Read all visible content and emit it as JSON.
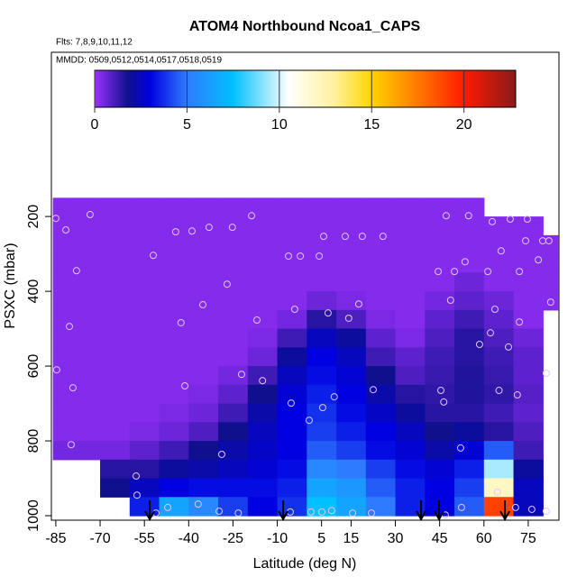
{
  "chart_data": {
    "type": "heatmap",
    "title": "ATOM4 Northbound Ncoa1_CAPS",
    "subtitle": "Flts: 7,8,9,10,11,12",
    "annotation": "MMDD: 0509,0512,0514,0517,0518,0519",
    "x_label": "Latitude (deg N)",
    "y_label": "PSXC (mbar)",
    "xlim": [
      -86.5,
      85.4
    ],
    "ylim": [
      1012,
      -239
    ],
    "xticks": [
      -85,
      -70,
      -55,
      -40,
      -25,
      -10,
      5,
      15,
      30,
      45,
      60,
      75
    ],
    "yticks": [
      200,
      400,
      600,
      800,
      1000
    ],
    "x_edges": [
      -86,
      -80,
      -70,
      -60,
      -50,
      -40,
      -30,
      -20,
      -10,
      0,
      10,
      20,
      30,
      40,
      50,
      60,
      70,
      80,
      85
    ],
    "y_edges": [
      150,
      200,
      250,
      300,
      350,
      400,
      450,
      500,
      550,
      600,
      650,
      700,
      750,
      800,
      850,
      900,
      950,
      1000
    ],
    "values": [
      [
        0.3,
        0.3,
        0.3,
        0.3,
        0.3,
        0.3,
        0.3,
        0.3,
        0.3,
        0.3,
        0.3,
        0.3,
        0.3,
        0.3,
        0.3,
        null,
        null,
        null
      ],
      [
        0.3,
        0.3,
        0.3,
        0.3,
        0.3,
        0.3,
        0.3,
        0.3,
        0.3,
        0.3,
        0.3,
        0.3,
        0.3,
        0.3,
        0.3,
        0.3,
        0.3,
        null
      ],
      [
        0.3,
        0.3,
        0.3,
        0.3,
        0.3,
        0.3,
        0.3,
        0.3,
        0.3,
        0.3,
        0.3,
        0.3,
        0.3,
        0.3,
        0.3,
        0.3,
        0.3,
        0.3
      ],
      [
        0.3,
        0.3,
        0.3,
        0.3,
        0.3,
        0.3,
        0.3,
        0.3,
        0.3,
        0.3,
        0.3,
        0.3,
        0.3,
        0.3,
        0.3,
        0.3,
        0.3,
        0.3
      ],
      [
        0.3,
        0.3,
        0.3,
        0.3,
        0.3,
        0.3,
        0.3,
        0.3,
        0.3,
        0.3,
        0.3,
        0.3,
        0.3,
        0.3,
        0.6,
        0.3,
        0.3,
        0.3
      ],
      [
        0.3,
        0.3,
        0.3,
        0.3,
        0.3,
        0.3,
        0.3,
        0.3,
        0.3,
        0.6,
        0.4,
        0.3,
        0.3,
        0.5,
        0.8,
        0.6,
        0.3,
        0.3
      ],
      [
        0.3,
        0.3,
        0.3,
        0.3,
        0.3,
        0.3,
        0.3,
        0.3,
        0.5,
        1.5,
        1.0,
        0.4,
        0.3,
        0.8,
        1.2,
        0.8,
        0.3,
        null
      ],
      [
        0.3,
        0.3,
        0.3,
        0.3,
        0.3,
        0.3,
        0.3,
        0.4,
        1.2,
        2.5,
        2.0,
        0.8,
        0.4,
        1.0,
        1.5,
        1.0,
        0.6,
        null
      ],
      [
        0.3,
        0.3,
        0.3,
        0.3,
        0.3,
        0.3,
        0.3,
        0.6,
        2.0,
        3.0,
        2.5,
        1.2,
        0.8,
        1.2,
        1.5,
        1.2,
        0.8,
        null
      ],
      [
        0.3,
        0.3,
        0.3,
        0.3,
        0.3,
        0.3,
        0.5,
        1.2,
        2.5,
        3.2,
        2.8,
        1.8,
        1.0,
        1.3,
        1.6,
        1.3,
        0.8,
        null
      ],
      [
        0.3,
        0.3,
        0.3,
        0.3,
        0.3,
        0.4,
        0.8,
        1.8,
        2.8,
        3.5,
        3.0,
        2.2,
        1.5,
        1.4,
        1.6,
        1.4,
        0.9,
        null
      ],
      [
        0.3,
        0.3,
        0.3,
        0.3,
        0.4,
        0.6,
        1.2,
        2.2,
        3.0,
        3.8,
        3.2,
        2.6,
        2.0,
        1.5,
        1.5,
        1.2,
        0.8,
        null
      ],
      [
        0.3,
        0.3,
        0.3,
        0.4,
        0.6,
        1.0,
        1.8,
        2.5,
        3.0,
        4.0,
        3.5,
        3.0,
        2.5,
        1.8,
        2.0,
        1.5,
        1.0,
        null
      ],
      [
        0.5,
        0.5,
        0.5,
        0.8,
        1.2,
        1.8,
        2.2,
        2.6,
        3.0,
        4.5,
        4.0,
        3.2,
        2.8,
        2.2,
        2.8,
        4.5,
        1.2,
        null
      ],
      [
        null,
        null,
        1.5,
        1.5,
        2.0,
        2.2,
        2.5,
        2.8,
        3.2,
        5.5,
        5.0,
        4.0,
        3.2,
        2.8,
        3.5,
        9.5,
        2.0,
        null
      ],
      [
        null,
        null,
        1.8,
        2.5,
        3.0,
        3.2,
        3.2,
        3.2,
        3.5,
        6.5,
        6.0,
        4.5,
        3.5,
        3.0,
        4.0,
        12.0,
        2.5,
        null
      ],
      [
        null,
        null,
        null,
        3.5,
        6.5,
        5.5,
        4.0,
        3.0,
        3.8,
        7.5,
        6.5,
        5.0,
        3.5,
        3.0,
        4.5,
        19.0,
        2.5,
        null
      ]
    ],
    "colorbar_lim": [
      0,
      22.8
    ],
    "colorbar_ticks": [
      0,
      5,
      10,
      15,
      20
    ],
    "colorscale": [
      [
        0,
        "#9b30ff"
      ],
      [
        1.8,
        "#10108f"
      ],
      [
        3,
        "#0000e0"
      ],
      [
        5,
        "#2f7bff"
      ],
      [
        7.5,
        "#00c0ff"
      ],
      [
        10.5,
        "#ffffff"
      ],
      [
        13,
        "#fff19a"
      ],
      [
        15,
        "#ffd400"
      ],
      [
        17,
        "#ff8c00"
      ],
      [
        20,
        "#ff1a00"
      ],
      [
        22.8,
        "#8b1a1a"
      ]
    ],
    "points": {
      "color": "#e0c8ff",
      "x": [
        -85,
        -81.6,
        -80.4,
        -78,
        -73.4,
        -84.7,
        -79.2,
        -79.8,
        -52,
        -44.4,
        -38.9,
        -33.1,
        -25.2,
        -18.7,
        -27,
        -35.2,
        -42.6,
        -41.3,
        -16.9,
        -22.1,
        -15,
        -28.8,
        -6.2,
        -2.2,
        4.2,
        5.7,
        13,
        18.8,
        25.8,
        -4.1,
        7.2,
        14.2,
        17.6,
        -5.3,
        0.8,
        5.4,
        9.3,
        22.5,
        47.2,
        54.8,
        62.8,
        68.9,
        74.7,
        79.9,
        82,
        74.1,
        65.8,
        78.4,
        53.6,
        44.5,
        50,
        61.3,
        72,
        48.7,
        82.6,
        63.7,
        72,
        62.2,
        58.5,
        68.3,
        81.1,
        65.1,
        71.3,
        45.4,
        46.4,
        52.1,
        -57.8,
        -57.5,
        -47.1,
        -36.8,
        -29.7,
        -23.2,
        -51.1,
        -5.6,
        1.4,
        5.1,
        8.4,
        15.5,
        21.9,
        46.9,
        52.4,
        70.7,
        76.2,
        81.1,
        64.6
      ],
      "y": [
        205,
        236,
        494,
        345,
        195,
        610,
        658,
        810,
        304,
        241,
        239,
        229,
        229,
        198,
        381,
        436,
        484,
        653,
        477,
        622,
        639,
        836,
        306,
        306,
        306,
        253,
        253,
        253,
        253,
        448,
        458,
        472,
        434,
        699,
        745,
        711,
        682,
        663,
        198,
        198,
        214,
        207,
        207,
        265,
        265,
        265,
        292,
        316,
        321,
        347,
        347,
        347,
        347,
        424,
        429,
        448,
        482,
        511,
        542,
        549,
        619,
        665,
        677,
        665,
        696,
        819,
        894,
        945,
        978,
        969,
        988,
        993,
        993,
        990,
        990,
        990,
        986,
        993,
        993,
        998,
        978,
        978,
        983,
        988,
        937
      ]
    },
    "arrow_lat": [
      -53.2,
      -8.0,
      38.7,
      44.8,
      67.1
    ]
  }
}
